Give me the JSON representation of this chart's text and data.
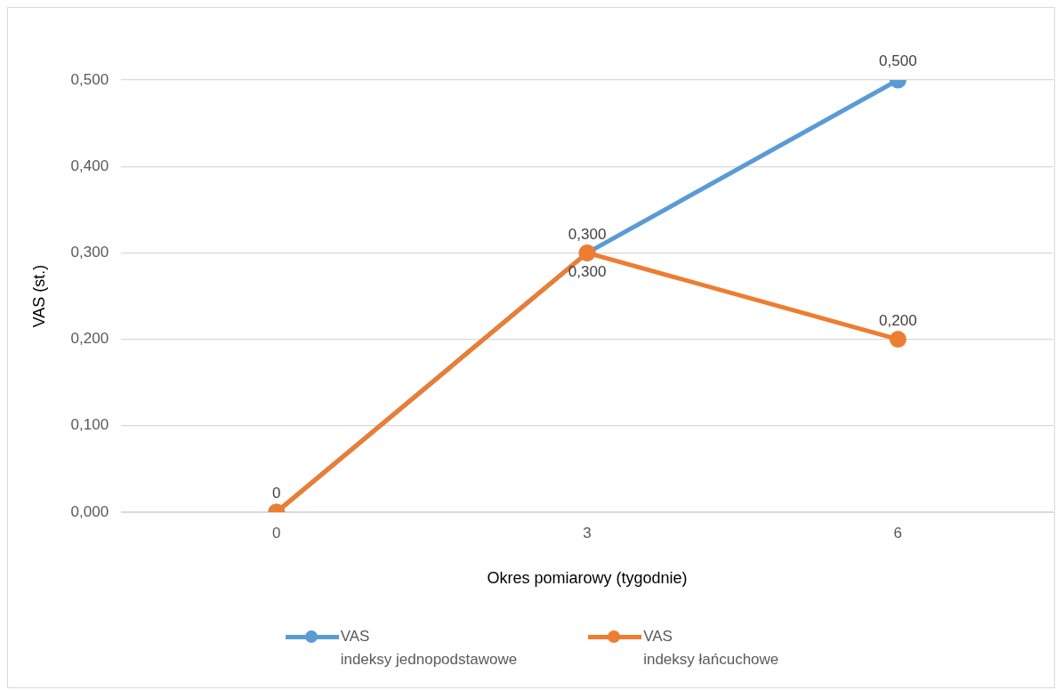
{
  "chart_data": {
    "type": "line",
    "xlabel": "Okres pomiarowy (tygodnie)",
    "ylabel": "VAS (st.)",
    "categories": [
      "0",
      "3",
      "6"
    ],
    "series": [
      {
        "name": "VAS\nindeksy jednopodstawowe",
        "color": "#5b9bd5",
        "values": [
          0,
          0.3,
          0.5
        ],
        "value_labels": [
          null,
          "0,300",
          "0,500"
        ]
      },
      {
        "name": "VAS\nindeksy łańcuchowe",
        "color": "#ed7d31",
        "values": [
          0,
          0.3,
          0.2
        ],
        "value_labels": [
          "0",
          "0,300",
          "0,200"
        ]
      }
    ],
    "ylim": [
      0,
      0.5
    ],
    "yticks": [
      {
        "value": 0,
        "label": "0,000"
      },
      {
        "value": 0.1,
        "label": "0,100"
      },
      {
        "value": 0.2,
        "label": "0,200"
      },
      {
        "value": 0.3,
        "label": "0,300"
      },
      {
        "value": 0.4,
        "label": "0,400"
      },
      {
        "value": 0.5,
        "label": "0,500"
      }
    ],
    "grid": "y",
    "legend": "bottom",
    "marker": "circle",
    "line_style": "solid"
  }
}
